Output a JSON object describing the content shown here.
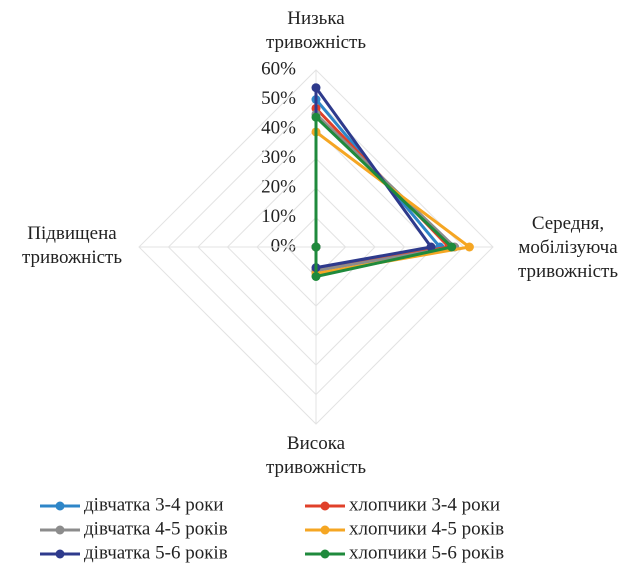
{
  "chart_data": {
    "type": "radar",
    "categories": [
      "Низька\nтривожність",
      "Середня,\nмобілізуюча\nтривожність",
      "Висока\nтривожність",
      "Підвищена\nтривожність"
    ],
    "series": [
      {
        "name": "дівчатка 3-4 роки",
        "color": "#2e86c8",
        "values": [
          50,
          42,
          8,
          0
        ]
      },
      {
        "name": "хлопчики 3-4 роки",
        "color": "#e0402a",
        "values": [
          47,
          45,
          8,
          0
        ]
      },
      {
        "name": "дівчатка 4-5 років",
        "color": "#8c8c8c",
        "values": [
          45,
          47,
          8,
          0
        ]
      },
      {
        "name": "хлопчики 4-5 років",
        "color": "#f5a623",
        "values": [
          39,
          52,
          9,
          0
        ]
      },
      {
        "name": "дівчатка 5-6 років",
        "color": "#2e3a8c",
        "values": [
          54,
          39,
          7,
          0
        ]
      },
      {
        "name": "хлопчики 5-6 років",
        "color": "#1f8a3c",
        "values": [
          44,
          46,
          10,
          0
        ]
      }
    ],
    "rlim": [
      0,
      60
    ],
    "rticks": [
      {
        "value": 0,
        "label": "0%"
      },
      {
        "value": 10,
        "label": "10%"
      },
      {
        "value": 20,
        "label": "20%"
      },
      {
        "value": 30,
        "label": "30%"
      },
      {
        "value": 40,
        "label": "40%"
      },
      {
        "value": 50,
        "label": "50%"
      },
      {
        "value": 60,
        "label": "60%"
      }
    ],
    "grid": true,
    "legend": "bottom"
  }
}
